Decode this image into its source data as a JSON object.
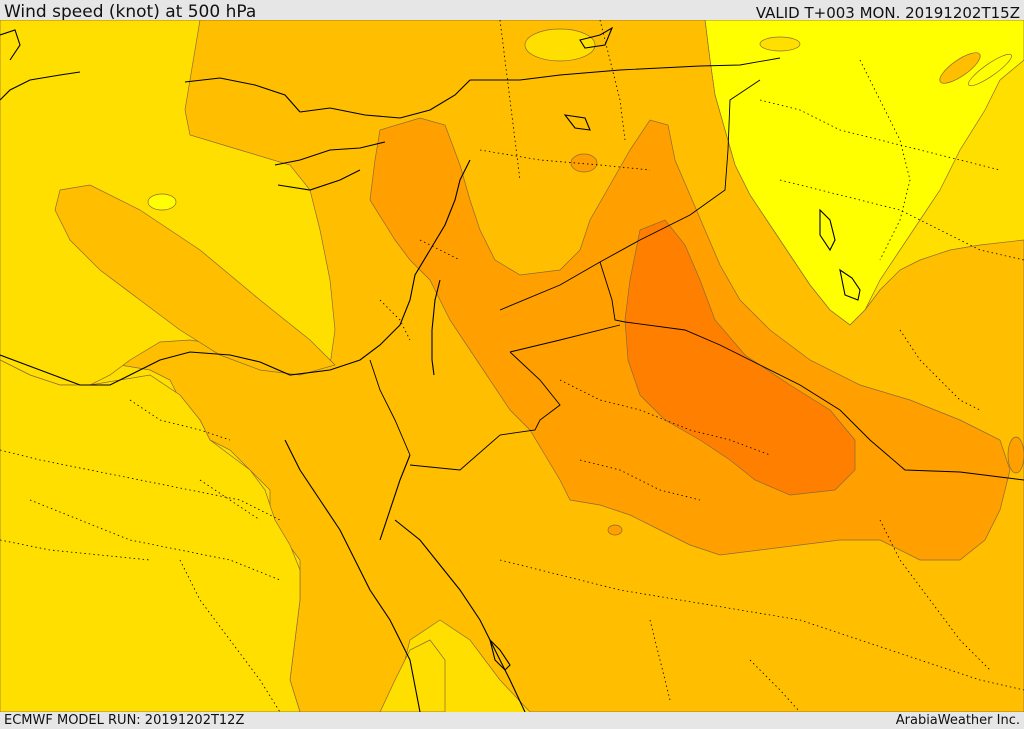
{
  "header": {
    "title": "Wind speed (knot) at 500 hPa",
    "valid": "VALID T+003 MON. 20191202T15Z"
  },
  "footer": {
    "model_run": "ECMWF MODEL RUN: 20191202T12Z",
    "credit": "ArabiaWeather Inc."
  },
  "colors": {
    "band_lightest": "#ffff00",
    "band_light": "#ffdf00",
    "band_mid": "#ffbf00",
    "band_orange": "#ff9f00",
    "band_dark": "#ff7f00",
    "contour": "#8a6a3a",
    "border": "#000000"
  }
}
